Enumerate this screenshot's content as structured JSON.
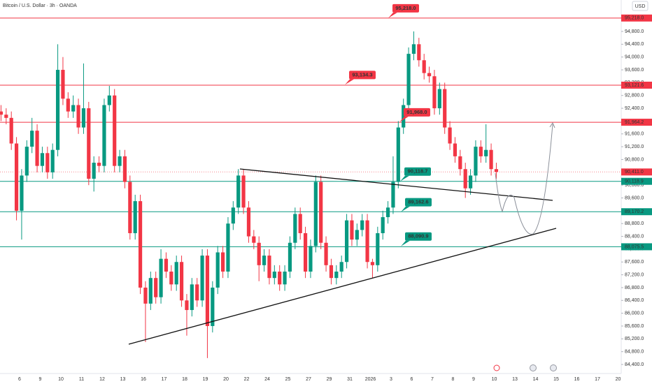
{
  "chart_data": {
    "type": "candlestick",
    "title": "Bitcoin / U.S. Dollar · 3h · OANDA",
    "currency": "USD",
    "up_color": "#089981",
    "down_color": "#f23645",
    "grid": false,
    "ylim": [
      84117,
      95781
    ],
    "yticks": [
      {
        "value": 84400,
        "label": "84,400.0"
      },
      {
        "value": 84800,
        "label": "84,800.0"
      },
      {
        "value": 85200,
        "label": "85,200.0"
      },
      {
        "value": 85600,
        "label": "85,600.0"
      },
      {
        "value": 86000,
        "label": "86,000.0"
      },
      {
        "value": 86400,
        "label": "86,400.0"
      },
      {
        "value": 86800,
        "label": "86,800.0"
      },
      {
        "value": 87200,
        "label": "87,200.0"
      },
      {
        "value": 87600,
        "label": "87,600.0"
      },
      {
        "value": 88000,
        "label": "88,000.0"
      },
      {
        "value": 88400,
        "label": "88,400.0"
      },
      {
        "value": 88800,
        "label": "88,800.0"
      },
      {
        "value": 89200,
        "label": "89,200.0"
      },
      {
        "value": 89600,
        "label": "89,600.0"
      },
      {
        "value": 90000,
        "label": "90,000.0"
      },
      {
        "value": 90400,
        "label": "90,400.0"
      },
      {
        "value": 90800,
        "label": "90,800.0"
      },
      {
        "value": 91200,
        "label": "91,200.0"
      },
      {
        "value": 91600,
        "label": "91,600.0"
      },
      {
        "value": 92000,
        "label": "92,000.0"
      },
      {
        "value": 92400,
        "label": "92,400.0"
      },
      {
        "value": 92800,
        "label": "92,800.0"
      },
      {
        "value": 93200,
        "label": "93,200.0"
      },
      {
        "value": 93600,
        "label": "93,600.0"
      },
      {
        "value": 94000,
        "label": "94,000.0"
      },
      {
        "value": 94400,
        "label": "94,400.0"
      },
      {
        "value": 94800,
        "label": "94,800.0"
      }
    ],
    "x_labels": [
      "6",
      "9",
      "10",
      "11",
      "12",
      "13",
      "16",
      "17",
      "18",
      "19",
      "20",
      "22",
      "24",
      "25",
      "27",
      "29",
      "31",
      "2026",
      "3",
      "6",
      "7",
      "8",
      "9",
      "10",
      "13",
      "14",
      "15",
      "16",
      "17",
      "20"
    ],
    "open": [
      92300,
      92200,
      92100,
      91300,
      89200,
      90300,
      91200,
      91700,
      90600,
      91000,
      90400,
      91100,
      93600,
      92700,
      92300,
      92500,
      91800,
      92400,
      90200,
      90700,
      90600,
      92500,
      92800,
      90600,
      90900,
      90100,
      88500,
      89500,
      86800,
      86300,
      87100,
      86500,
      87700,
      87300,
      86900,
      87600,
      86400,
      86100,
      86900,
      86400,
      87800,
      85600,
      86800,
      87900,
      87300,
      88800,
      89300,
      90300,
      89300,
      88400,
      88200,
      87500,
      87800,
      87100,
      87300,
      86900,
      87300,
      88200,
      89100,
      88500,
      87300,
      88100,
      90100,
      88200,
      87500,
      87100,
      87300,
      87600,
      88900,
      88300,
      88600,
      88900,
      87600,
      87500,
      88500,
      89000,
      89300,
      90100,
      91800,
      92500,
      94100,
      94400,
      93900,
      93500,
      93400,
      92400,
      93000,
      91800,
      91300,
      90900,
      90500,
      89900,
      90300,
      91200,
      90900,
      91100,
      90500
    ],
    "close": [
      92200,
      92100,
      91300,
      89200,
      90300,
      91200,
      91700,
      90600,
      91000,
      90400,
      91100,
      93600,
      92700,
      92300,
      92500,
      91800,
      92400,
      90200,
      90700,
      90600,
      92500,
      92800,
      90600,
      90900,
      90100,
      88500,
      89500,
      86800,
      86300,
      87100,
      86500,
      87700,
      87300,
      86900,
      87600,
      86400,
      86100,
      86900,
      86400,
      87800,
      85600,
      86800,
      87900,
      87300,
      88800,
      89300,
      90300,
      89300,
      88400,
      88200,
      87500,
      87800,
      87100,
      87300,
      86900,
      87300,
      88200,
      89100,
      88500,
      87300,
      88100,
      90100,
      88200,
      87500,
      87100,
      87300,
      87600,
      88900,
      88300,
      88600,
      88900,
      87600,
      87500,
      88500,
      89000,
      89300,
      90100,
      91800,
      92500,
      94100,
      94400,
      93900,
      93500,
      93400,
      92400,
      93000,
      91800,
      91300,
      90900,
      90500,
      89900,
      90300,
      91200,
      90900,
      91100,
      90500,
      90411
    ],
    "high": [
      92500,
      92400,
      92300,
      91500,
      90500,
      91400,
      92100,
      91900,
      91200,
      91200,
      91300,
      94400,
      94000,
      92900,
      92800,
      92700,
      93800,
      92600,
      90900,
      90900,
      92700,
      93100,
      93000,
      91100,
      91100,
      90300,
      89700,
      89700,
      87000,
      87300,
      87300,
      88000,
      87900,
      87500,
      87800,
      87800,
      86600,
      87100,
      87100,
      88000,
      88000,
      87000,
      88100,
      88100,
      89000,
      89500,
      90500,
      90500,
      89500,
      88600,
      88400,
      88000,
      88000,
      87500,
      87500,
      87500,
      88400,
      89300,
      89300,
      88700,
      88300,
      90300,
      90300,
      88400,
      87700,
      87500,
      87800,
      89100,
      89100,
      88800,
      89100,
      89100,
      87700,
      88700,
      89200,
      89500,
      90900,
      92000,
      92700,
      94300,
      94800,
      94600,
      94100,
      93700,
      93600,
      93200,
      93200,
      92000,
      91500,
      91100,
      90700,
      90500,
      91400,
      91400,
      91900,
      91300,
      90700
    ],
    "low": [
      92000,
      91900,
      91100,
      88900,
      88300,
      90100,
      91000,
      90400,
      90400,
      90200,
      90200,
      90900,
      92500,
      92100,
      92100,
      91600,
      91600,
      90000,
      89800,
      90400,
      90400,
      92300,
      90400,
      90400,
      89900,
      88300,
      88300,
      86600,
      85100,
      86100,
      86300,
      86300,
      87100,
      86700,
      86700,
      86200,
      85300,
      85900,
      86200,
      86200,
      84600,
      85400,
      86600,
      87100,
      87100,
      88600,
      89100,
      89100,
      88200,
      88000,
      87000,
      87300,
      86900,
      86900,
      86700,
      86700,
      87100,
      88000,
      88300,
      87100,
      87100,
      87900,
      88000,
      87300,
      86900,
      86900,
      87100,
      87400,
      88100,
      88100,
      88400,
      87400,
      87100,
      87300,
      88300,
      88800,
      89100,
      89900,
      91600,
      92300,
      93900,
      93700,
      93300,
      93200,
      92200,
      92200,
      91600,
      91100,
      90700,
      90300,
      89600,
      89700,
      90100,
      90700,
      90700,
      90300,
      90200
    ],
    "levels": [
      {
        "value": 95218,
        "label": "95,218.0",
        "color": "#f23645"
      },
      {
        "value": 93121.6,
        "label": "93,121.6",
        "color": "#f23645"
      },
      {
        "value": 91964.2,
        "label": "91,964.2",
        "color": "#f23645"
      },
      {
        "value": 90118.9,
        "label": "90,118.9",
        "color": "#089981"
      },
      {
        "value": 89170.2,
        "label": "89,170.2",
        "color": "#089981"
      },
      {
        "value": 88075.5,
        "label": "88,075.5",
        "color": "#089981"
      }
    ],
    "last_price": {
      "value": 90411,
      "label": "90,411.0",
      "color": "#f23645"
    },
    "callouts": [
      {
        "value": 95218,
        "label": "95,218.0",
        "color": "#f23645"
      },
      {
        "value": 93134.3,
        "label": "93,134.3",
        "color": "#f23645"
      },
      {
        "value": 91968,
        "label": "91,968.0",
        "color": "#f23645"
      },
      {
        "value": 90118.7,
        "label": "90,118.7",
        "color": "#089981"
      },
      {
        "value": 89162.6,
        "label": "89,162.6",
        "color": "#089981"
      },
      {
        "value": 88090.9,
        "label": "88,090.9",
        "color": "#089981"
      }
    ]
  }
}
